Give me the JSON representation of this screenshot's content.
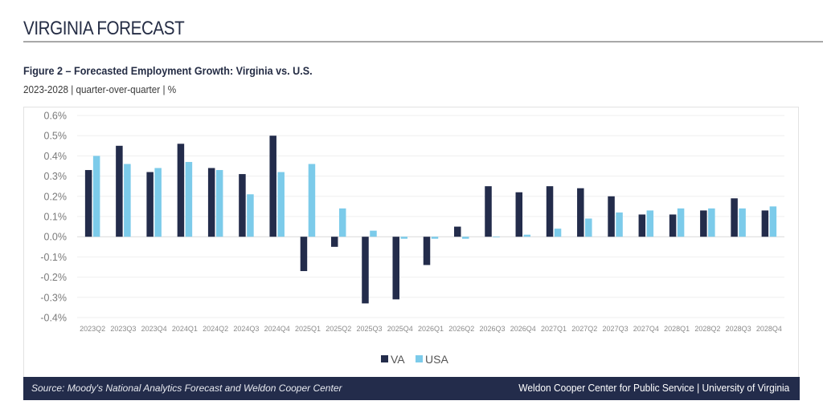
{
  "header": {
    "section_title": "VIRGINIA FORECAST",
    "figure_title": "Figure 2 – Forecasted Employment Growth: Virginia vs. U.S.",
    "figure_subtitle": "2023-2028 | quarter-over-quarter | %"
  },
  "footer": {
    "source": "Source: Moody's National Analytics Forecast and Weldon Cooper Center",
    "organization": "Weldon Cooper Center for Public Service | University of Virginia"
  },
  "colors": {
    "va": "#232c4b",
    "usa": "#7ccbea",
    "footer_bg": "#232c4b"
  },
  "chart_data": {
    "type": "bar",
    "title": "Forecasted Employment Growth: Virginia vs. U.S.",
    "xlabel": "",
    "ylabel": "%",
    "ylim": [
      -0.4,
      0.6
    ],
    "yticks": [
      0.6,
      0.5,
      0.4,
      0.3,
      0.2,
      0.1,
      0.0,
      -0.1,
      -0.2,
      -0.3,
      -0.4
    ],
    "ytick_labels": [
      "0.6%",
      "0.5%",
      "0.4%",
      "0.3%",
      "0.2%",
      "0.1%",
      "0.0%",
      "-0.1%",
      "-0.2%",
      "-0.3%",
      "-0.4%"
    ],
    "grid": true,
    "legend_position": "bottom-center",
    "categories": [
      "2023Q2",
      "2023Q3",
      "2023Q4",
      "2024Q1",
      "2024Q2",
      "2024Q3",
      "2024Q4",
      "2025Q1",
      "2025Q2",
      "2025Q3",
      "2025Q4",
      "2026Q1",
      "2026Q2",
      "2026Q3",
      "2026Q4",
      "2027Q1",
      "2027Q2",
      "2027Q3",
      "2027Q4",
      "2028Q1",
      "2028Q2",
      "2028Q3",
      "2028Q4"
    ],
    "series": [
      {
        "name": "VA",
        "color": "#232c4b",
        "values": [
          0.33,
          0.45,
          0.32,
          0.46,
          0.34,
          0.31,
          0.5,
          -0.17,
          -0.05,
          -0.33,
          -0.31,
          -0.14,
          0.05,
          0.25,
          0.22,
          0.25,
          0.24,
          0.2,
          0.11,
          0.11,
          0.13,
          0.19,
          0.13
        ]
      },
      {
        "name": "USA",
        "color": "#7ccbea",
        "values": [
          0.4,
          0.36,
          0.34,
          0.37,
          0.33,
          0.21,
          0.32,
          0.36,
          0.14,
          0.03,
          -0.01,
          -0.01,
          -0.01,
          0.0,
          0.01,
          0.04,
          0.09,
          0.12,
          0.13,
          0.14,
          0.14,
          0.14,
          0.15
        ]
      }
    ]
  }
}
